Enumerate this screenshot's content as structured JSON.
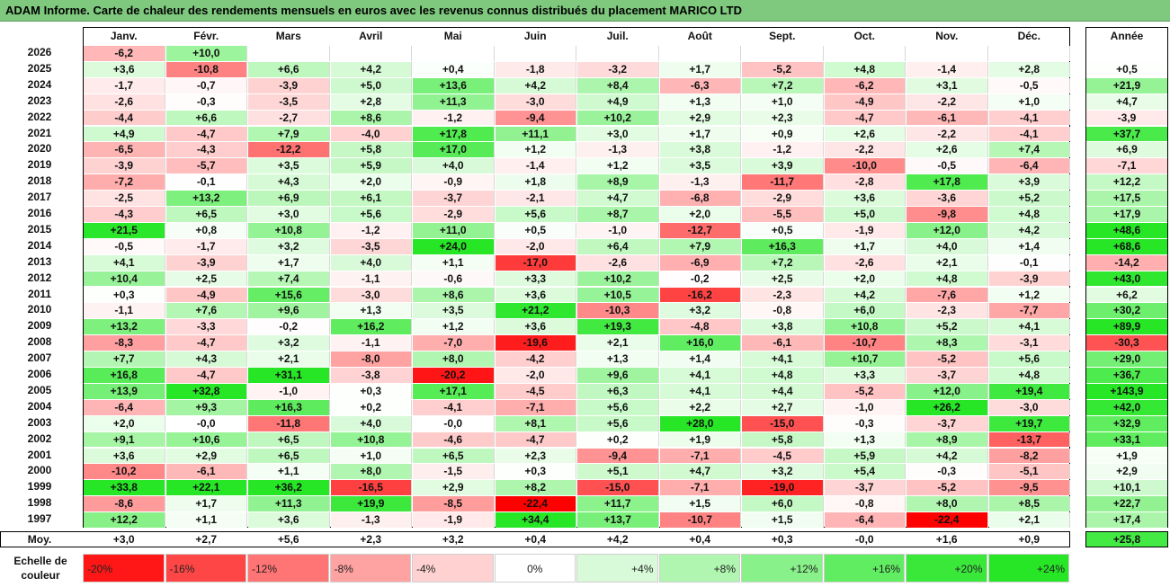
{
  "title": "ADAM Informe. Carte de chaleur des rendements mensuels en euros avec les revenus connus distribués du placement MARICO LTD",
  "chart_data": {
    "type": "heatmap",
    "months": [
      "Janv.",
      "Févr.",
      "Mars",
      "Avril",
      "Mai",
      "Juin",
      "Juil.",
      "Août",
      "Sept.",
      "Oct.",
      "Nov.",
      "Déc."
    ],
    "year_header": "Année",
    "rows": [
      {
        "year": "2026",
        "m": [
          "-6,2",
          "+10,0",
          "",
          "",
          "",
          "",
          "",
          "",
          "",
          "",
          "",
          ""
        ],
        "a": ""
      },
      {
        "year": "2025",
        "m": [
          "+3,6",
          "-10,8",
          "+6,6",
          "+4,2",
          "+0,4",
          "-1,8",
          "-3,2",
          "+1,7",
          "-5,2",
          "+4,8",
          "-1,4",
          "+2,8"
        ],
        "a": "+0,5"
      },
      {
        "year": "2024",
        "m": [
          "-1,7",
          "-0,7",
          "-3,9",
          "+5,0",
          "+13,6",
          "+4,2",
          "+8,4",
          "-6,3",
          "+7,2",
          "-6,2",
          "+3,1",
          "-0,5"
        ],
        "a": "+21,9"
      },
      {
        "year": "2023",
        "m": [
          "-2,6",
          "-0,3",
          "-3,5",
          "+2,8",
          "+11,3",
          "-3,0",
          "+4,9",
          "+1,3",
          "+1,0",
          "-4,9",
          "-2,2",
          "+1,0"
        ],
        "a": "+4,7"
      },
      {
        "year": "2022",
        "m": [
          "-4,4",
          "+6,6",
          "-2,7",
          "+8,6",
          "-1,2",
          "-9,4",
          "+10,2",
          "+2,9",
          "+2,3",
          "-4,7",
          "-6,1",
          "-4,1"
        ],
        "a": "-3,9"
      },
      {
        "year": "2021",
        "m": [
          "+4,9",
          "-4,7",
          "+7,9",
          "-4,0",
          "+17,8",
          "+11,1",
          "+3,0",
          "+1,7",
          "+0,9",
          "+2,6",
          "-2,2",
          "-4,1"
        ],
        "a": "+37,7"
      },
      {
        "year": "2020",
        "m": [
          "-6,5",
          "-4,3",
          "-12,2",
          "+5,8",
          "+17,0",
          "+1,2",
          "-1,3",
          "+3,8",
          "-1,2",
          "-2,2",
          "+2,6",
          "+7,4"
        ],
        "a": "+6,9"
      },
      {
        "year": "2019",
        "m": [
          "-3,9",
          "-5,7",
          "+3,5",
          "+5,9",
          "+4,0",
          "-1,4",
          "+1,2",
          "+3,5",
          "+3,9",
          "-10,0",
          "-0,5",
          "-6,4"
        ],
        "a": "-7,1"
      },
      {
        "year": "2018",
        "m": [
          "-7,2",
          "-0,1",
          "+4,3",
          "+2,0",
          "-0,9",
          "+1,8",
          "+8,9",
          "-1,3",
          "-11,7",
          "-2,8",
          "+17,8",
          "+3,9"
        ],
        "a": "+12,2"
      },
      {
        "year": "2017",
        "m": [
          "-2,5",
          "+13,2",
          "+6,9",
          "+6,1",
          "-3,7",
          "-2,1",
          "+4,7",
          "-6,8",
          "-2,9",
          "+3,6",
          "-3,6",
          "+5,2"
        ],
        "a": "+17,5"
      },
      {
        "year": "2016",
        "m": [
          "-4,3",
          "+6,5",
          "+3,0",
          "+5,6",
          "-2,9",
          "+5,6",
          "+8,7",
          "+2,0",
          "-5,5",
          "+5,0",
          "-9,8",
          "+4,8"
        ],
        "a": "+17,9"
      },
      {
        "year": "2015",
        "m": [
          "+21,5",
          "+0,8",
          "+10,8",
          "-1,2",
          "+11,0",
          "+0,5",
          "-1,0",
          "-12,7",
          "+0,5",
          "-1,9",
          "+12,0",
          "+4,2"
        ],
        "a": "+48,6"
      },
      {
        "year": "2014",
        "m": [
          "-0,5",
          "-1,7",
          "+3,2",
          "-3,5",
          "+24,0",
          "-2,0",
          "+6,4",
          "+7,9",
          "+16,3",
          "+1,7",
          "+4,0",
          "+1,4"
        ],
        "a": "+68,6"
      },
      {
        "year": "2013",
        "m": [
          "+4,1",
          "-3,9",
          "+1,7",
          "+4,0",
          "+1,1",
          "-17,0",
          "-2,6",
          "-6,9",
          "+7,2",
          "-2,6",
          "+2,1",
          "-0,1"
        ],
        "a": "-14,2"
      },
      {
        "year": "2012",
        "m": [
          "+10,4",
          "+2,5",
          "+7,4",
          "-1,1",
          "-0,6",
          "+3,3",
          "+10,2",
          "-0,2",
          "+2,5",
          "+2,0",
          "+4,8",
          "-3,9"
        ],
        "a": "+43,0"
      },
      {
        "year": "2011",
        "m": [
          "+0,3",
          "-4,9",
          "+15,6",
          "-3,0",
          "+8,6",
          "+3,6",
          "+10,5",
          "-16,2",
          "-2,3",
          "+4,2",
          "-7,6",
          "+1,2"
        ],
        "a": "+6,2"
      },
      {
        "year": "2010",
        "m": [
          "-1,1",
          "+7,6",
          "+9,6",
          "+1,3",
          "+3,5",
          "+21,2",
          "-10,3",
          "+3,2",
          "-0,8",
          "+6,0",
          "-2,3",
          "-7,7"
        ],
        "a": "+30,2"
      },
      {
        "year": "2009",
        "m": [
          "+13,2",
          "-3,3",
          "-0,2",
          "+16,2",
          "+1,2",
          "+3,6",
          "+19,3",
          "-4,8",
          "+3,8",
          "+10,8",
          "+5,2",
          "+4,1"
        ],
        "a": "+89,9"
      },
      {
        "year": "2008",
        "m": [
          "-8,3",
          "-4,7",
          "+3,2",
          "-1,1",
          "-7,0",
          "-19,6",
          "+2,1",
          "+16,0",
          "-6,1",
          "-10,7",
          "+8,3",
          "-3,1"
        ],
        "a": "-30,3"
      },
      {
        "year": "2007",
        "m": [
          "+7,7",
          "+4,3",
          "+2,1",
          "-8,0",
          "+8,0",
          "-4,2",
          "+1,3",
          "+1,4",
          "+4,1",
          "+10,7",
          "-5,2",
          "+5,6"
        ],
        "a": "+29,0"
      },
      {
        "year": "2006",
        "m": [
          "+16,8",
          "-4,7",
          "+31,1",
          "-3,8",
          "-20,2",
          "-2,0",
          "+9,6",
          "+4,1",
          "+4,8",
          "+3,3",
          "-3,7",
          "+4,8"
        ],
        "a": "+36,7"
      },
      {
        "year": "2005",
        "m": [
          "+13,9",
          "+32,8",
          "-1,0",
          "+0,3",
          "+17,1",
          "-4,5",
          "+6,3",
          "+4,1",
          "+4,4",
          "-5,2",
          "+12,0",
          "+19,4"
        ],
        "a": "+143,9"
      },
      {
        "year": "2004",
        "m": [
          "-6,4",
          "+9,3",
          "+16,3",
          "+0,2",
          "-4,1",
          "-7,1",
          "+5,6",
          "+2,2",
          "+2,7",
          "-1,0",
          "+26,2",
          "-3,0"
        ],
        "a": "+42,0"
      },
      {
        "year": "2003",
        "m": [
          "+2,0",
          "-0,0",
          "-11,8",
          "+4,0",
          "-0,0",
          "+8,1",
          "+5,6",
          "+28,0",
          "-15,0",
          "-0,3",
          "-3,7",
          "+19,7"
        ],
        "a": "+32,9"
      },
      {
        "year": "2002",
        "m": [
          "+9,1",
          "+10,6",
          "+6,5",
          "+10,8",
          "-4,6",
          "-4,7",
          "+0,2",
          "+1,9",
          "+5,8",
          "+1,3",
          "+8,9",
          "-13,7"
        ],
        "a": "+33,1"
      },
      {
        "year": "2001",
        "m": [
          "+3,6",
          "+2,9",
          "+6,5",
          "+1,0",
          "+6,5",
          "+2,3",
          "-9,4",
          "-7,1",
          "-4,5",
          "+5,9",
          "+4,2",
          "-8,2"
        ],
        "a": "+1,9"
      },
      {
        "year": "2000",
        "m": [
          "-10,2",
          "-6,1",
          "+1,1",
          "+8,0",
          "-1,5",
          "+0,3",
          "+5,1",
          "+4,7",
          "+3,2",
          "+5,4",
          "-0,3",
          "-5,1"
        ],
        "a": "+2,9"
      },
      {
        "year": "1999",
        "m": [
          "+33,8",
          "+22,1",
          "+36,2",
          "-16,5",
          "+2,9",
          "+8,2",
          "-15,0",
          "-7,1",
          "-19,0",
          "-3,7",
          "-5,2",
          "-9,5"
        ],
        "a": "+10,1"
      },
      {
        "year": "1998",
        "m": [
          "-8,6",
          "+1,7",
          "+11,3",
          "+19,9",
          "-8,5",
          "-22,4",
          "+11,7",
          "+1,5",
          "+6,0",
          "-0,8",
          "+8,0",
          "+8,5"
        ],
        "a": "+22,7"
      },
      {
        "year": "1997",
        "m": [
          "+12,2",
          "+1,1",
          "+3,6",
          "-1,3",
          "-1,9",
          "+34,4",
          "+13,7",
          "-10,7",
          "+1,5",
          "-6,4",
          "-22,4",
          "+2,1"
        ],
        "a": "+17,4"
      }
    ],
    "average": {
      "label": "Moy.",
      "m": [
        "+3,0",
        "+2,7",
        "+5,6",
        "+2,3",
        "+3,2",
        "+0,4",
        "+4,2",
        "+0,4",
        "+0,3",
        "-0,0",
        "+1,6",
        "+0,9"
      ],
      "a": "+25,8"
    },
    "legend": {
      "label": "Echelle de couleur",
      "steps": [
        "-20%",
        "-16%",
        "-12%",
        "-8%",
        "-4%",
        "0%",
        "+4%",
        "+8%",
        "+12%",
        "+16%",
        "+20%",
        "+24%"
      ]
    }
  }
}
